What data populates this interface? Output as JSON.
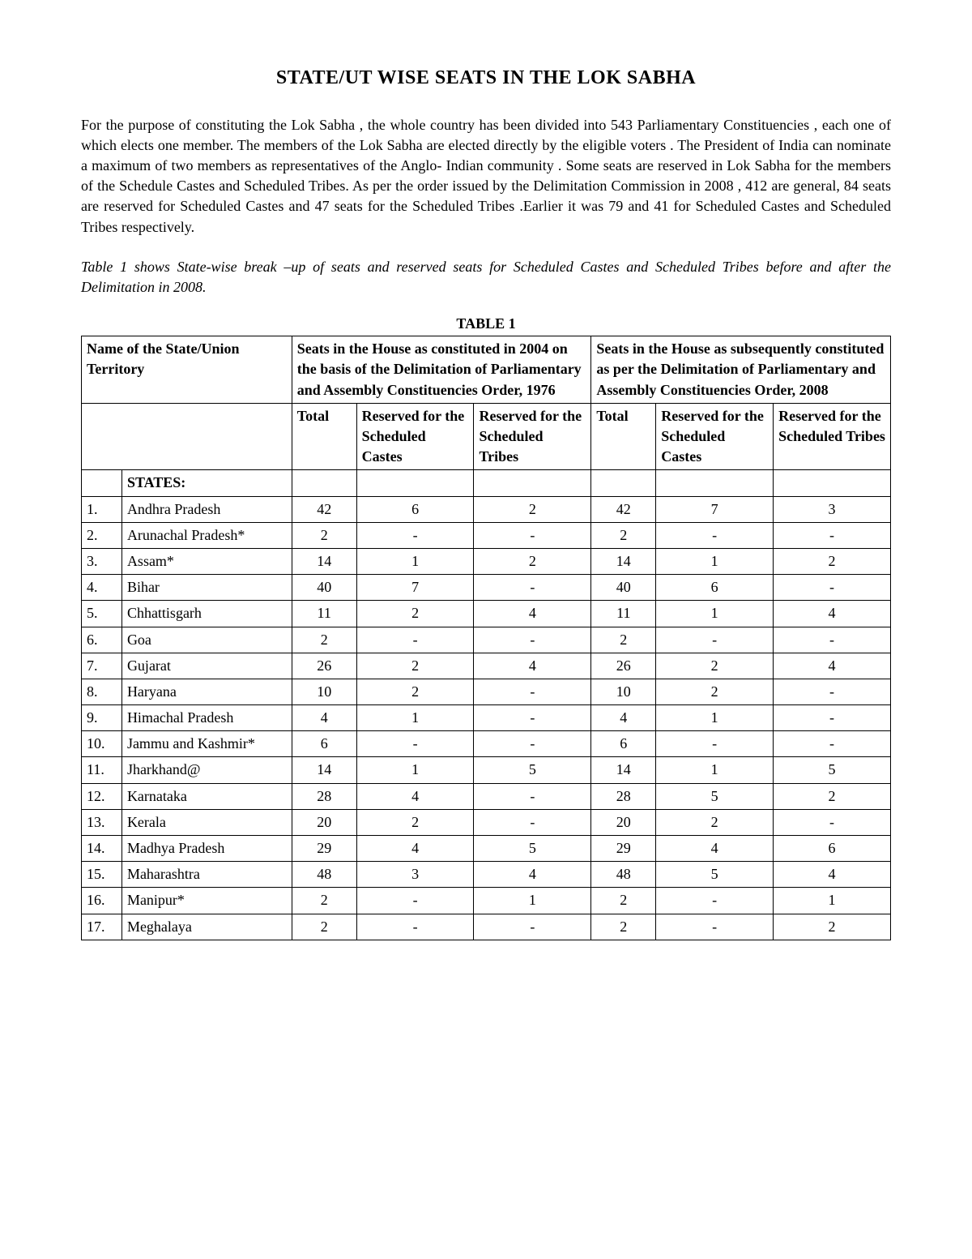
{
  "title": "STATE/UT WISE SEATS IN THE LOK SABHA",
  "intro": "For the purpose of constituting the Lok Sabha , the whole country has been divided into 543 Parliamentary Constituencies , each one of which elects one member. The members of the Lok Sabha are elected directly by the eligible voters . The  President of India can nominate a maximum of two members as representatives of the Anglo- Indian community . Some seats are reserved in Lok Sabha for the members of the Schedule Castes and Scheduled Tribes. As per the order issued  by the Delimitation Commission in 2008 , 412 are general, 84 seats are reserved for Scheduled Castes and 47 seats for the Scheduled Tribes .Earlier it was  79 and 41  for Scheduled Castes and Scheduled Tribes respectively.",
  "caption": "Table 1 shows State-wise break –up of seats and  reserved seats  for  Scheduled Castes and Scheduled Tribes before and after the Delimitation in  2008.",
  "table_label": "TABLE 1",
  "headers": {
    "name": "Name of the State/Union Territory",
    "group_2004": "Seats in the House as constituted in 2004 on the basis of the Delimitation of Parliamentary and Assembly Constituencies Order, 1976",
    "group_2008": "Seats in the House as subsequently constituted as per the Delimitation of Parliamentary and Assembly Constituencies Order, 2008",
    "total": "Total",
    "sc": "Reserved for the Scheduled Castes",
    "st": "Reserved for the Scheduled Tribes",
    "states_label": "STATES:"
  },
  "rows": [
    {
      "n": "1.",
      "name": "Andhra Pradesh",
      "t04": "42",
      "sc04": "6",
      "st04": "2",
      "t08": "42",
      "sc08": "7",
      "st08": "3"
    },
    {
      "n": "2.",
      "name": "Arunachal Pradesh*",
      "t04": "2",
      "sc04": "-",
      "st04": "-",
      "t08": "2",
      "sc08": "-",
      "st08": "-"
    },
    {
      "n": "3.",
      "name": "Assam*",
      "t04": "14",
      "sc04": "1",
      "st04": "2",
      "t08": "14",
      "sc08": "1",
      "st08": "2"
    },
    {
      "n": "4.",
      "name": "Bihar",
      "t04": "40",
      "sc04": "7",
      "st04": "-",
      "t08": "40",
      "sc08": "6",
      "st08": "-"
    },
    {
      "n": "5.",
      "name": "Chhattisgarh",
      "t04": "11",
      "sc04": "2",
      "st04": "4",
      "t08": "11",
      "sc08": "1",
      "st08": "4"
    },
    {
      "n": "6.",
      "name": "Goa",
      "t04": "2",
      "sc04": "-",
      "st04": "-",
      "t08": "2",
      "sc08": "-",
      "st08": "-"
    },
    {
      "n": "7.",
      "name": "Gujarat",
      "t04": "26",
      "sc04": "2",
      "st04": "4",
      "t08": "26",
      "sc08": "2",
      "st08": "4"
    },
    {
      "n": "8.",
      "name": "Haryana",
      "t04": "10",
      "sc04": "2",
      "st04": "-",
      "t08": "10",
      "sc08": "2",
      "st08": "-"
    },
    {
      "n": "9.",
      "name": "Himachal Pradesh",
      "t04": "4",
      "sc04": "1",
      "st04": "-",
      "t08": "4",
      "sc08": "1",
      "st08": "-"
    },
    {
      "n": "10.",
      "name": "Jammu and Kashmir*",
      "t04": "6",
      "sc04": "-",
      "st04": "-",
      "t08": "6",
      "sc08": "-",
      "st08": "-"
    },
    {
      "n": "11.",
      "name": "Jharkhand@",
      "t04": "14",
      "sc04": "1",
      "st04": "5",
      "t08": "14",
      "sc08": "1",
      "st08": "5"
    },
    {
      "n": "12.",
      "name": "Karnataka",
      "t04": "28",
      "sc04": "4",
      "st04": "-",
      "t08": "28",
      "sc08": "5",
      "st08": "2"
    },
    {
      "n": "13.",
      "name": "Kerala",
      "t04": "20",
      "sc04": "2",
      "st04": "-",
      "t08": "20",
      "sc08": "2",
      "st08": "-"
    },
    {
      "n": "14.",
      "name": "Madhya Pradesh",
      "t04": "29",
      "sc04": "4",
      "st04": "5",
      "t08": "29",
      "sc08": "4",
      "st08": "6"
    },
    {
      "n": "15.",
      "name": "Maharashtra",
      "t04": "48",
      "sc04": "3",
      "st04": "4",
      "t08": "48",
      "sc08": "5",
      "st08": "4"
    },
    {
      "n": "16.",
      "name": "Manipur*",
      "t04": "2",
      "sc04": "-",
      "st04": "1",
      "t08": "2",
      "sc08": "-",
      "st08": "1"
    },
    {
      "n": "17.",
      "name": "Meghalaya",
      "t04": "2",
      "sc04": "-",
      "st04": "-",
      "t08": "2",
      "sc08": "-",
      "st08": "2"
    }
  ]
}
